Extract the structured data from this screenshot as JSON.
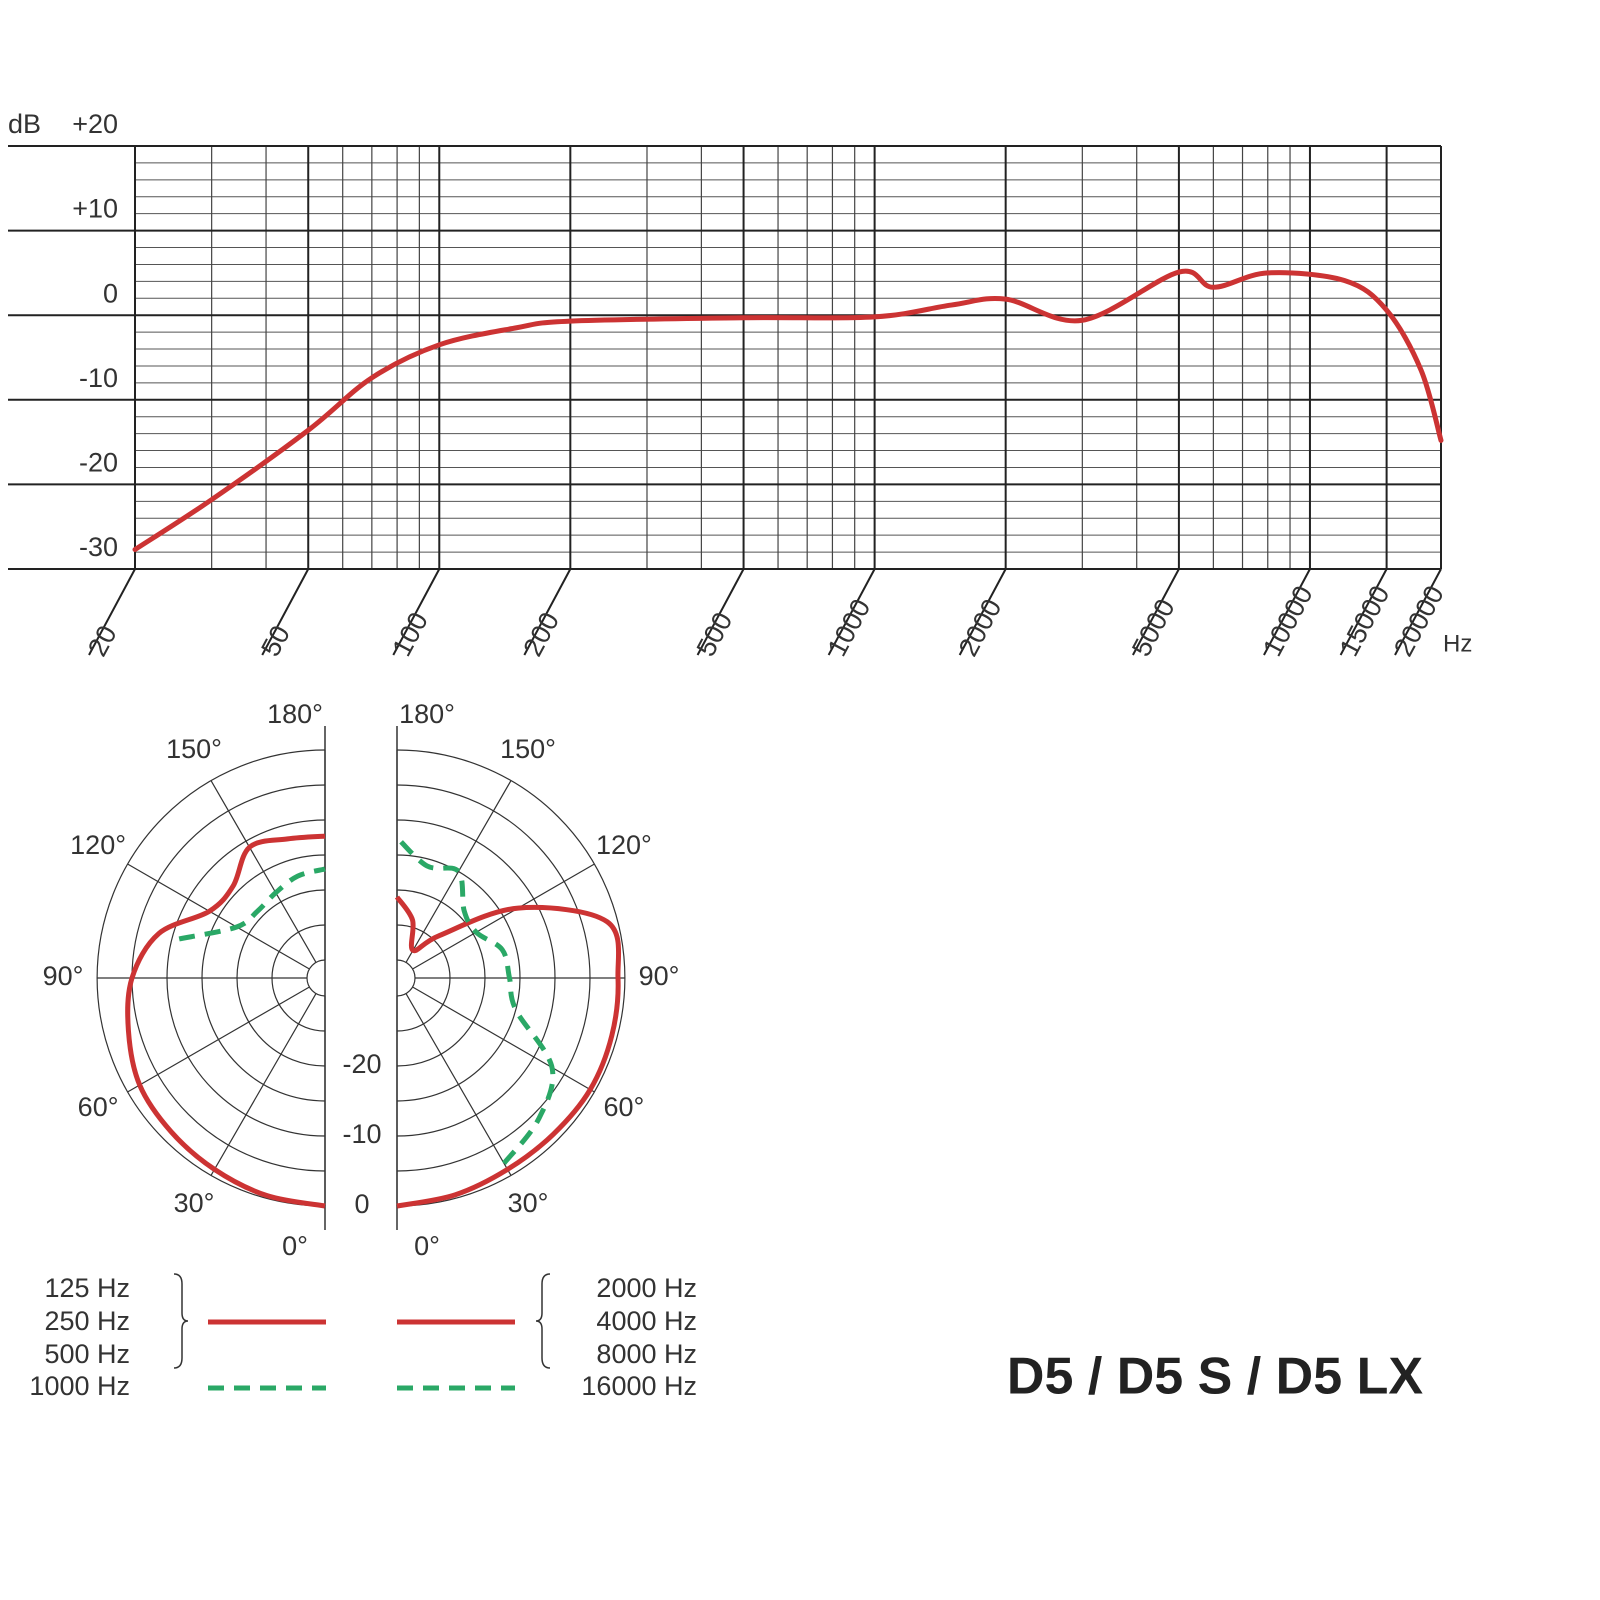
{
  "title": "D5 / D5 S / D5 LX",
  "chart_data": [
    {
      "type": "line",
      "x_scale": "log",
      "ylabel": "dB",
      "xlabel": "Hz",
      "grid": true,
      "x": [
        20,
        30,
        50,
        70,
        100,
        150,
        200,
        500,
        1000,
        1500,
        2000,
        3000,
        5000,
        6000,
        8000,
        12000,
        15000,
        18000,
        20000
      ],
      "series": [
        {
          "color": "#cc3333",
          "values": [
            -27.7,
            -21.8,
            -13.6,
            -7.4,
            -3.5,
            -1.5,
            -0.7,
            -0.3,
            -0.2,
            1.2,
            1.9,
            -0.6,
            5.1,
            3.3,
            5.0,
            4.1,
            0.6,
            -6.5,
            -14.8
          ]
        }
      ],
      "xlim": [
        20,
        20000
      ],
      "ylim": [
        -30,
        20
      ],
      "xticks": [
        20,
        50,
        100,
        200,
        500,
        1000,
        2000,
        5000,
        10000,
        15000,
        20000
      ],
      "minor_xticks": [
        30,
        40,
        60,
        70,
        80,
        90,
        300,
        400,
        600,
        700,
        800,
        900,
        3000,
        4000,
        6000,
        7000,
        8000,
        9000
      ],
      "yticks": [
        -30,
        -20,
        -10,
        0,
        {
          "value": 10,
          "label": "+10"
        },
        {
          "value": 20,
          "label": "+20"
        }
      ],
      "minor_yticks": [
        -28,
        -26,
        -24,
        -22,
        -18,
        -16,
        -14,
        -12,
        -8,
        -6,
        -4,
        -2,
        2,
        4,
        6,
        8,
        12,
        14,
        16,
        18
      ]
    },
    {
      "type": "polar",
      "half": "left",
      "theta": [
        0,
        15,
        30,
        45,
        60,
        75,
        90,
        105,
        120,
        135,
        150,
        165,
        180
      ],
      "rlim": [
        -30,
        0
      ],
      "rticks": [
        -20,
        -10,
        0
      ],
      "rgrid": [
        -30,
        -25,
        -20,
        -15,
        -10,
        -5,
        0
      ],
      "thetaticks": [
        {
          "value": 0,
          "label": "0°"
        },
        {
          "value": 30,
          "label": "30°"
        },
        {
          "value": 60,
          "label": "60°"
        },
        {
          "value": 90,
          "label": "90°"
        },
        {
          "value": 120,
          "label": "120°"
        },
        {
          "value": 150,
          "label": "150°"
        },
        {
          "value": 180,
          "label": "180°"
        }
      ],
      "series": [
        {
          "names": [
            "125 Hz",
            "250 Hz",
            "500 Hz"
          ],
          "color": "#cc3333",
          "dashed": false,
          "values": [
            0,
            -0.4,
            -1,
            -1.5,
            -2,
            -3.5,
            -5,
            -8,
            -13.5,
            -14,
            -11,
            -12,
            -12.3
          ]
        },
        {
          "names": [
            "1000 Hz"
          ],
          "color": "#2aa866",
          "dashed": true,
          "values": [
            null,
            null,
            null,
            null,
            null,
            null,
            null,
            -11,
            -18,
            -19,
            -18.5,
            -17.5,
            -17
          ]
        }
      ]
    },
    {
      "type": "polar",
      "half": "right",
      "theta": [
        0,
        15,
        30,
        45,
        60,
        75,
        90,
        105,
        120,
        135,
        150,
        165,
        180
      ],
      "rlim": [
        -30,
        0
      ],
      "rgrid": [
        -30,
        -25,
        -20,
        -15,
        -10,
        -5,
        0
      ],
      "thetaticks": [
        {
          "value": 0,
          "label": "0°"
        },
        {
          "value": 30,
          "label": "30°"
        },
        {
          "value": 60,
          "label": "60°"
        },
        {
          "value": 90,
          "label": "90°"
        },
        {
          "value": 120,
          "label": "120°"
        },
        {
          "value": 150,
          "label": "150°"
        },
        {
          "value": 180,
          "label": "180°"
        }
      ],
      "series": [
        {
          "names": [
            "2000 Hz",
            "4000 Hz",
            "8000 Hz"
          ],
          "color": "#cc3333",
          "dashed": false,
          "values": [
            0,
            -0.5,
            -1,
            -1,
            -0.7,
            -0.8,
            -1,
            -1.5,
            -12.6,
            -24,
            -28,
            -24,
            -21
          ]
        },
        {
          "names": [
            "16000 Hz"
          ],
          "color": "#2aa866",
          "dashed": true,
          "values": [
            null,
            null,
            -2,
            -4,
            -7,
            -15,
            -16.5,
            -17,
            -19.5,
            -19,
            -15,
            -16,
            -12.5
          ]
        }
      ]
    }
  ]
}
